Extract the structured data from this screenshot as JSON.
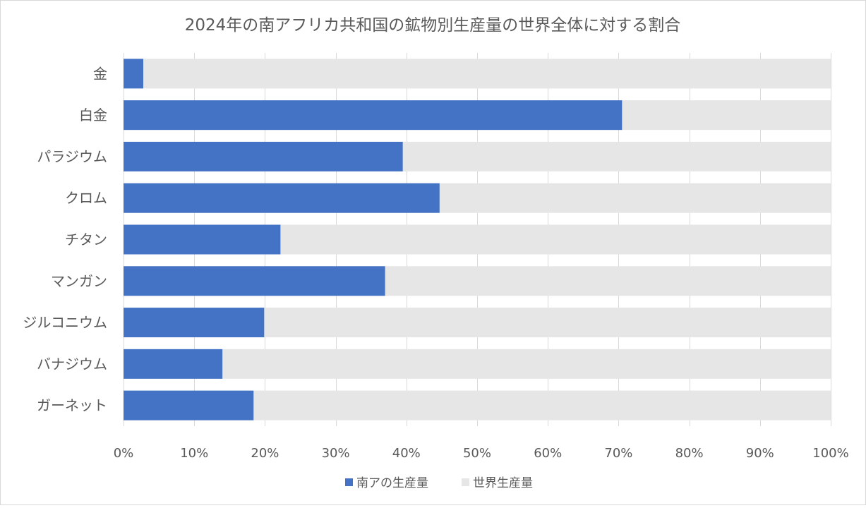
{
  "chart_data": {
    "type": "bar",
    "orientation": "horizontal",
    "stacked": "100%",
    "title": "2024年の南アフリカ共和国の鉱物別生産量の世界全体に対する割合",
    "categories": [
      "金",
      "白金",
      "パラジウム",
      "クロム",
      "チタン",
      "マンガン",
      "ジルコニウム",
      "バナジウム",
      "ガーネット"
    ],
    "series": [
      {
        "name": "南アの生産量",
        "values": [
          2.8,
          70.5,
          39.5,
          44.7,
          22.2,
          37.0,
          19.9,
          14.0,
          18.4
        ],
        "color": "#4472C4"
      },
      {
        "name": "世界生産量",
        "values": [
          97.2,
          29.5,
          60.5,
          55.3,
          77.8,
          63.0,
          80.1,
          86.0,
          81.6
        ],
        "color": "#E7E6E6"
      }
    ],
    "x_ticks": [
      "0%",
      "10%",
      "20%",
      "30%",
      "40%",
      "50%",
      "60%",
      "70%",
      "80%",
      "90%",
      "100%"
    ],
    "xlim": [
      0,
      100
    ],
    "xlabel": "",
    "ylabel": "",
    "grid": true,
    "legend_position": "bottom"
  },
  "colors": {
    "title": "#595959",
    "axis_text": "#595959",
    "gridline": "#D9D9D9",
    "frame": "#D9D9D9"
  }
}
